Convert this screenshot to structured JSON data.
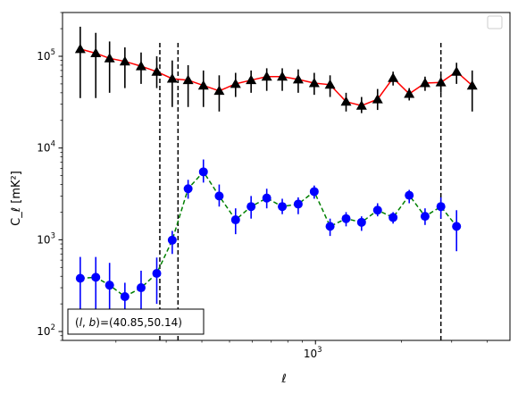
{
  "chart_data": {
    "type": "line",
    "title": "",
    "xlabel": "ℓ",
    "ylabel": "C_ℓ  [mK²]",
    "x_scale": "log",
    "y_scale": "log",
    "xlim": [
      130,
      4800
    ],
    "ylim": [
      80,
      300000
    ],
    "x_tick_labels": [
      {
        "value": 1000,
        "base": "10",
        "exp": "3"
      }
    ],
    "y_tick_labels": [
      {
        "value": 100,
        "base": "10",
        "exp": "2"
      },
      {
        "value": 1000,
        "base": "10",
        "exp": "3"
      },
      {
        "value": 10000,
        "base": "10",
        "exp": "4"
      },
      {
        "value": 100000,
        "base": "10",
        "exp": "5"
      }
    ],
    "x": [
      150,
      170,
      190,
      215,
      245,
      278,
      315,
      358,
      405,
      460,
      525,
      595,
      675,
      765,
      870,
      990,
      1125,
      1280,
      1450,
      1650,
      1870,
      2130,
      2420,
      2750,
      3120,
      3540,
      4000,
      4350
    ],
    "series": [
      {
        "name": "",
        "color": "#ff0000",
        "marker_color": "#000000",
        "marker": "triangle",
        "linestyle": "solid",
        "values": [
          120000,
          108000,
          95000,
          88000,
          78000,
          68000,
          57000,
          55000,
          48000,
          42000,
          50000,
          55000,
          60000,
          60000,
          56000,
          51000,
          49000,
          32000,
          29000,
          34000,
          58000,
          39000,
          51000,
          52000,
          68000,
          48000
        ],
        "x": [
          150,
          170,
          190,
          215,
          245,
          278,
          315,
          358,
          405,
          460,
          525,
          595,
          675,
          765,
          870,
          990,
          1125,
          1280,
          1450,
          1650,
          1870,
          2130,
          2420,
          2750,
          3120,
          3540
        ],
        "err_low": [
          35000,
          35000,
          40000,
          45000,
          50000,
          45000,
          28000,
          28000,
          28000,
          25000,
          36000,
          40000,
          42000,
          42000,
          40000,
          38000,
          36000,
          25000,
          24000,
          26000,
          48000,
          33000,
          42000,
          40000,
          50000,
          25000
        ],
        "err_high": [
          210000,
          180000,
          145000,
          125000,
          110000,
          100000,
          90000,
          80000,
          70000,
          62000,
          66000,
          70000,
          74000,
          74000,
          72000,
          66000,
          62000,
          40000,
          36000,
          44000,
          68000,
          45000,
          60000,
          64000,
          85000,
          70000
        ]
      },
      {
        "name": "",
        "color": "#008000",
        "marker_color": "#0000ff",
        "marker": "circle",
        "linestyle": "dashed",
        "values": [
          380,
          390,
          320,
          240,
          300,
          430,
          990,
          3600,
          5500,
          3000,
          1650,
          2300,
          2850,
          2300,
          2450,
          3350,
          1400,
          1700,
          1550,
          2100,
          1750,
          3050,
          1800,
          2300,
          1400
        ],
        "x": [
          150,
          170,
          190,
          215,
          245,
          278,
          315,
          358,
          405,
          460,
          525,
          595,
          675,
          765,
          870,
          990,
          1125,
          1280,
          1450,
          1650,
          1870,
          2130,
          2420,
          2750,
          3120
        ],
        "err_low": [
          150,
          150,
          140,
          100,
          140,
          200,
          700,
          2800,
          4200,
          2300,
          1150,
          1700,
          2200,
          1900,
          1900,
          2800,
          1100,
          1400,
          1250,
          1800,
          1500,
          2500,
          1450,
          1700,
          750
        ],
        "err_high": [
          650,
          650,
          560,
          340,
          460,
          640,
          1250,
          4500,
          7500,
          4000,
          2200,
          3000,
          3600,
          2800,
          2900,
          3900,
          1700,
          2000,
          1800,
          2500,
          2000,
          3500,
          2200,
          2900,
          2100
        ]
      }
    ],
    "vlines": [
      285,
      330,
      2750
    ],
    "grid": false,
    "legend": {
      "location": "top-right",
      "entries": []
    },
    "annotation": "(l, b)=(40.85,50.14)",
    "annotation_parts": {
      "prefix": "(",
      "l": "l",
      "sep": ", ",
      "b": "b",
      "suffix": ")=(40.85,50.14)"
    },
    "colors": {
      "vline": "#000000",
      "frame": "#000000"
    }
  }
}
